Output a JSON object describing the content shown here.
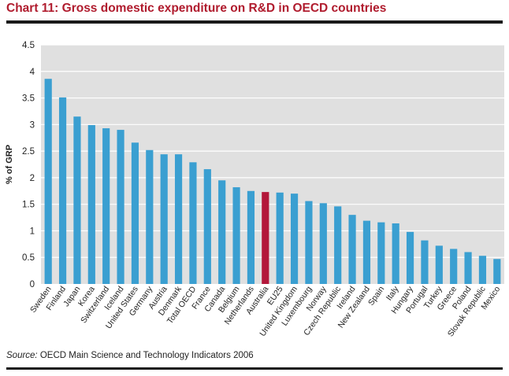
{
  "header": {
    "title": "Chart 11: Gross domestic expenditure on R&D in OECD countries"
  },
  "footer": {
    "source_label": "Source:",
    "source_text": " OECD Main Science and Technology Indicators 2006"
  },
  "colors": {
    "bar": "#3a9fd1",
    "highlight": "#b3173a",
    "plot_bg": "#e0e0e0",
    "grid": "#ffffff"
  },
  "chart_data": {
    "type": "bar",
    "title": "Chart 11: Gross domestic expenditure on R&D in OECD countries",
    "xlabel": "",
    "ylabel": "% of GRP",
    "ylim": [
      0,
      4.5
    ],
    "yticks": [
      "0",
      "0.5",
      "1",
      "1.5",
      "2",
      "2.5",
      "3",
      "3.5",
      "4",
      "4.5"
    ],
    "grid": true,
    "highlight": "Australia",
    "categories": [
      "Sweden",
      "Finland",
      "Japan",
      "Korea",
      "Switzerland",
      "Iceland",
      "United States",
      "Germany",
      "Austria",
      "Denmark",
      "Total OECD",
      "France",
      "Canada",
      "Belgium",
      "Netherlands",
      "Australia",
      "EU25",
      "United Kingdom",
      "Luxembourg",
      "Norway",
      "Czech Republic",
      "Ireland",
      "New Zealand",
      "Spain",
      "Italy",
      "Hungary",
      "Portugal",
      "Turkey",
      "Greece",
      "Poland",
      "Slovak Republic",
      "Mexico"
    ],
    "values": [
      3.86,
      3.51,
      3.15,
      2.99,
      2.93,
      2.9,
      2.66,
      2.52,
      2.44,
      2.44,
      2.29,
      2.16,
      1.95,
      1.82,
      1.75,
      1.73,
      1.72,
      1.7,
      1.56,
      1.52,
      1.46,
      1.3,
      1.19,
      1.16,
      1.14,
      0.98,
      0.82,
      0.72,
      0.66,
      0.6,
      0.53,
      0.47
    ]
  }
}
